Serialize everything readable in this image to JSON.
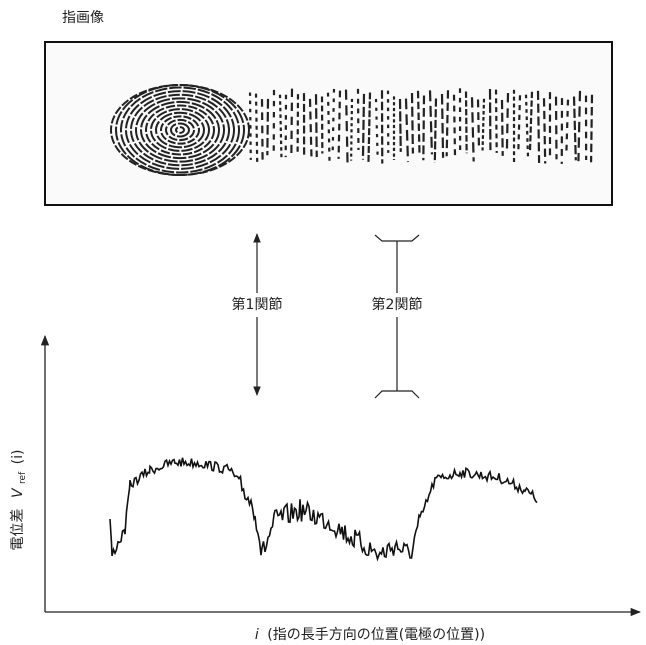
{
  "title": "指画像",
  "joints": [
    {
      "label": "第1関節"
    },
    {
      "label": "第2関節"
    }
  ],
  "graph": {
    "y_axis_label": {
      "text": "電位差",
      "variable": "V",
      "subscript": "ref",
      "argument": "(i)"
    },
    "x_axis_label": {
      "variable": "i",
      "text": "(指の長手方向の位置(電極の位置))"
    }
  }
}
